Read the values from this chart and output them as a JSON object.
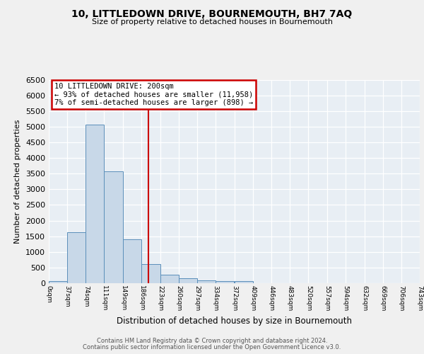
{
  "title": "10, LITTLEDOWN DRIVE, BOURNEMOUTH, BH7 7AQ",
  "subtitle": "Size of property relative to detached houses in Bournemouth",
  "xlabel": "Distribution of detached houses by size in Bournemouth",
  "ylabel": "Number of detached properties",
  "bar_heights": [
    75,
    1625,
    5075,
    3575,
    1400,
    600,
    275,
    150,
    100,
    75,
    75,
    0,
    0,
    0,
    0,
    0,
    0,
    0,
    0,
    0
  ],
  "bin_edges": [
    0,
    37,
    74,
    111,
    149,
    186,
    223,
    260,
    297,
    334,
    372,
    409,
    446,
    483,
    520,
    557,
    594,
    632,
    669,
    706,
    743
  ],
  "tick_labels": [
    "0sqm",
    "37sqm",
    "74sqm",
    "111sqm",
    "149sqm",
    "186sqm",
    "223sqm",
    "260sqm",
    "297sqm",
    "334sqm",
    "372sqm",
    "409sqm",
    "446sqm",
    "483sqm",
    "520sqm",
    "557sqm",
    "594sqm",
    "632sqm",
    "669sqm",
    "706sqm",
    "743sqm"
  ],
  "vline_x": 200,
  "vline_color": "#cc0000",
  "bar_facecolor": "#c8d8e8",
  "bar_edgecolor": "#5b8fba",
  "annotation_line1": "10 LITTLEDOWN DRIVE: 200sqm",
  "annotation_line2": "← 93% of detached houses are smaller (11,958)",
  "annotation_line3": "7% of semi-detached houses are larger (898) →",
  "annotation_box_edgecolor": "#cc0000",
  "annotation_box_facecolor": "#ffffff",
  "ylim_max": 6500,
  "yticks": [
    0,
    500,
    1000,
    1500,
    2000,
    2500,
    3000,
    3500,
    4000,
    4500,
    5000,
    5500,
    6000,
    6500
  ],
  "plot_bg_color": "#e8eef4",
  "fig_bg_color": "#f0f0f0",
  "grid_color": "#ffffff",
  "footer1": "Contains HM Land Registry data © Crown copyright and database right 2024.",
  "footer2": "Contains public sector information licensed under the Open Government Licence v3.0."
}
